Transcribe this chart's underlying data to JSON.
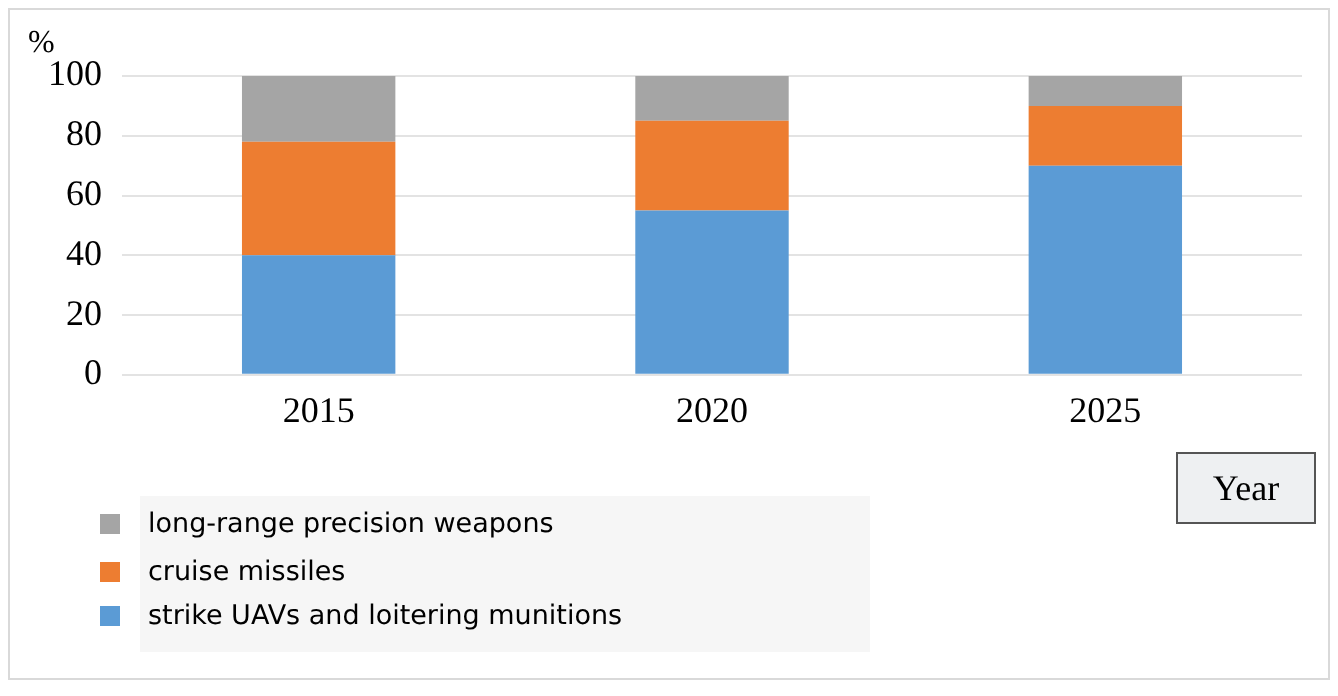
{
  "chart_data": {
    "type": "bar",
    "stacked": true,
    "categories": [
      "2015",
      "2020",
      "2025"
    ],
    "series": [
      {
        "name": "strike UAVs and loitering munitions",
        "color": "#5b9bd5",
        "values": [
          40,
          55,
          70
        ]
      },
      {
        "name": "cruise missiles",
        "color": "#ed7d31",
        "values": [
          38,
          30,
          20
        ]
      },
      {
        "name": "long-range precision weapons",
        "color": "#a5a5a5",
        "values": [
          22,
          15,
          10
        ]
      }
    ],
    "ylabel": "%",
    "xlabel": "Year",
    "ylim": [
      0,
      100
    ],
    "yticks": [
      0,
      20,
      40,
      60,
      80,
      100
    ],
    "grid": "y",
    "legend": "bottom left"
  }
}
